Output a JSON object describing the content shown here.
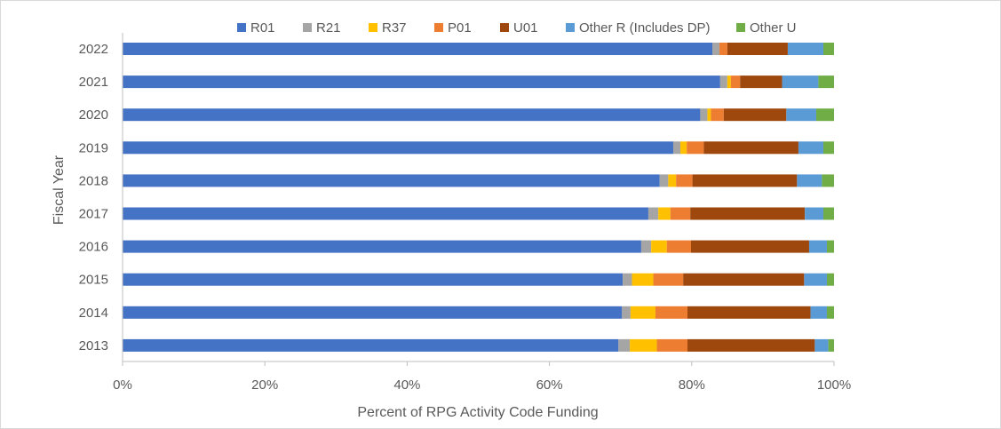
{
  "chart_data": {
    "type": "bar",
    "orientation": "horizontal",
    "stacked": "percent",
    "title": "",
    "xlabel": "Percent of RPG Activity Code Funding",
    "ylabel": "Fiscal Year",
    "xlim": [
      0,
      100
    ],
    "x_ticks": [
      "0%",
      "20%",
      "40%",
      "60%",
      "80%",
      "100%"
    ],
    "grid": false,
    "legend_position": "top",
    "categories": [
      "2022",
      "2021",
      "2020",
      "2019",
      "2018",
      "2017",
      "2016",
      "2015",
      "2014",
      "2013"
    ],
    "series": [
      {
        "name": "R01",
        "color": "#4472C4",
        "values": [
          82.9,
          84.0,
          81.2,
          77.4,
          75.5,
          73.9,
          72.9,
          70.3,
          70.2,
          69.7
        ]
      },
      {
        "name": "R21",
        "color": "#A5A5A5",
        "values": [
          1.0,
          1.0,
          1.0,
          1.0,
          1.2,
          1.4,
          1.4,
          1.3,
          1.2,
          1.6
        ]
      },
      {
        "name": "R37",
        "color": "#FFC000",
        "values": [
          0.0,
          0.5,
          0.5,
          0.9,
          1.1,
          1.7,
          2.2,
          3.0,
          3.5,
          3.8
        ]
      },
      {
        "name": "P01",
        "color": "#ED7D31",
        "values": [
          1.1,
          1.3,
          1.8,
          2.4,
          2.3,
          2.8,
          3.4,
          4.2,
          4.5,
          4.3
        ]
      },
      {
        "name": "U01",
        "color": "#9E480E",
        "values": [
          8.5,
          5.9,
          8.8,
          13.3,
          14.7,
          16.1,
          16.6,
          17.0,
          17.3,
          17.9
        ]
      },
      {
        "name": "Other R (Includes DP)",
        "color": "#5B9BD5",
        "values": [
          5.0,
          5.1,
          4.2,
          3.5,
          3.5,
          2.6,
          2.5,
          3.2,
          2.3,
          1.9
        ]
      },
      {
        "name": "Other U",
        "color": "#70AD47",
        "values": [
          1.5,
          2.2,
          2.5,
          1.5,
          1.7,
          1.5,
          1.0,
          1.0,
          1.0,
          0.8
        ]
      }
    ]
  }
}
